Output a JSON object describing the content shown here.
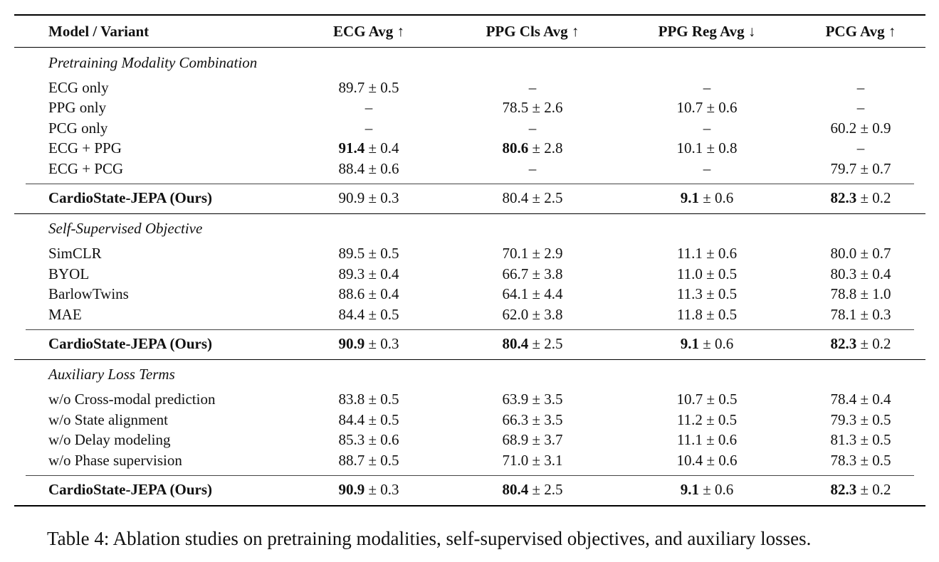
{
  "table": {
    "columns": [
      "Model / Variant",
      "ECG Avg ↑",
      "PPG Cls Avg ↑",
      "PPG Reg Avg ↓",
      "PCG Avg ↑"
    ],
    "groups": [
      {
        "title": "Pretraining Modality Combination",
        "rows": [
          {
            "name": "ECG only",
            "cells": [
              {
                "v": "89.7",
                "s": " ± 0.5",
                "b": false
              },
              {
                "v": "–",
                "s": "",
                "b": false
              },
              {
                "v": "–",
                "s": "",
                "b": false
              },
              {
                "v": "–",
                "s": "",
                "b": false
              }
            ]
          },
          {
            "name": "PPG only",
            "cells": [
              {
                "v": "–",
                "s": "",
                "b": false
              },
              {
                "v": "78.5",
                "s": " ± 2.6",
                "b": false
              },
              {
                "v": "10.7",
                "s": " ± 0.6",
                "b": false
              },
              {
                "v": "–",
                "s": "",
                "b": false
              }
            ]
          },
          {
            "name": "PCG only",
            "cells": [
              {
                "v": "–",
                "s": "",
                "b": false
              },
              {
                "v": "–",
                "s": "",
                "b": false
              },
              {
                "v": "–",
                "s": "",
                "b": false
              },
              {
                "v": "60.2",
                "s": " ± 0.9",
                "b": false
              }
            ]
          },
          {
            "name": "ECG + PPG",
            "cells": [
              {
                "v": "91.4",
                "s": " ± 0.4",
                "b": true
              },
              {
                "v": "80.6",
                "s": " ± 2.8",
                "b": true
              },
              {
                "v": "10.1",
                "s": " ± 0.8",
                "b": false
              },
              {
                "v": "–",
                "s": "",
                "b": false
              }
            ]
          },
          {
            "name": "ECG + PCG",
            "cells": [
              {
                "v": "88.4",
                "s": " ± 0.6",
                "b": false
              },
              {
                "v": "–",
                "s": "",
                "b": false
              },
              {
                "v": "–",
                "s": "",
                "b": false
              },
              {
                "v": "79.7",
                "s": " ± 0.7",
                "b": false
              }
            ]
          }
        ],
        "ours": {
          "name": "CardioState-JEPA (Ours)",
          "cells": [
            {
              "v": "90.9",
              "s": " ± 0.3",
              "b": false
            },
            {
              "v": "80.4",
              "s": " ± 2.5",
              "b": false
            },
            {
              "v": "9.1",
              "s": " ± 0.6",
              "b": true
            },
            {
              "v": "82.3",
              "s": " ± 0.2",
              "b": true
            }
          ]
        }
      },
      {
        "title": "Self-Supervised Objective",
        "rows": [
          {
            "name": "SimCLR",
            "cells": [
              {
                "v": "89.5",
                "s": " ± 0.5",
                "b": false
              },
              {
                "v": "70.1",
                "s": " ± 2.9",
                "b": false
              },
              {
                "v": "11.1",
                "s": " ± 0.6",
                "b": false
              },
              {
                "v": "80.0",
                "s": " ± 0.7",
                "b": false
              }
            ]
          },
          {
            "name": "BYOL",
            "cells": [
              {
                "v": "89.3",
                "s": " ± 0.4",
                "b": false
              },
              {
                "v": "66.7",
                "s": " ± 3.8",
                "b": false
              },
              {
                "v": "11.0",
                "s": " ± 0.5",
                "b": false
              },
              {
                "v": "80.3",
                "s": " ± 0.4",
                "b": false
              }
            ]
          },
          {
            "name": "BarlowTwins",
            "cells": [
              {
                "v": "88.6",
                "s": " ± 0.4",
                "b": false
              },
              {
                "v": "64.1",
                "s": " ± 4.4",
                "b": false
              },
              {
                "v": "11.3",
                "s": " ± 0.5",
                "b": false
              },
              {
                "v": "78.8",
                "s": " ± 1.0",
                "b": false
              }
            ]
          },
          {
            "name": "MAE",
            "cells": [
              {
                "v": "84.4",
                "s": " ± 0.5",
                "b": false
              },
              {
                "v": "62.0",
                "s": " ± 3.8",
                "b": false
              },
              {
                "v": "11.8",
                "s": " ± 0.5",
                "b": false
              },
              {
                "v": "78.1",
                "s": " ± 0.3",
                "b": false
              }
            ]
          }
        ],
        "ours": {
          "name": "CardioState-JEPA (Ours)",
          "cells": [
            {
              "v": "90.9",
              "s": " ± 0.3",
              "b": true
            },
            {
              "v": "80.4",
              "s": " ± 2.5",
              "b": true
            },
            {
              "v": "9.1",
              "s": " ± 0.6",
              "b": true
            },
            {
              "v": "82.3",
              "s": " ± 0.2",
              "b": true
            }
          ]
        }
      },
      {
        "title": "Auxiliary Loss Terms",
        "rows": [
          {
            "name": "w/o Cross-modal prediction",
            "cells": [
              {
                "v": "83.8",
                "s": " ± 0.5",
                "b": false
              },
              {
                "v": "63.9",
                "s": " ± 3.5",
                "b": false
              },
              {
                "v": "10.7",
                "s": " ± 0.5",
                "b": false
              },
              {
                "v": "78.4",
                "s": " ± 0.4",
                "b": false
              }
            ]
          },
          {
            "name": "w/o State alignment",
            "cells": [
              {
                "v": "84.4",
                "s": " ± 0.5",
                "b": false
              },
              {
                "v": "66.3",
                "s": " ± 3.5",
                "b": false
              },
              {
                "v": "11.2",
                "s": " ± 0.5",
                "b": false
              },
              {
                "v": "79.3",
                "s": " ± 0.5",
                "b": false
              }
            ]
          },
          {
            "name": "w/o Delay modeling",
            "cells": [
              {
                "v": "85.3",
                "s": " ± 0.6",
                "b": false
              },
              {
                "v": "68.9",
                "s": " ± 3.7",
                "b": false
              },
              {
                "v": "11.1",
                "s": " ± 0.6",
                "b": false
              },
              {
                "v": "81.3",
                "s": " ± 0.5",
                "b": false
              }
            ]
          },
          {
            "name": "w/o Phase supervision",
            "cells": [
              {
                "v": "88.7",
                "s": " ± 0.5",
                "b": false
              },
              {
                "v": "71.0",
                "s": " ± 3.1",
                "b": false
              },
              {
                "v": "10.4",
                "s": " ± 0.6",
                "b": false
              },
              {
                "v": "78.3",
                "s": " ± 0.5",
                "b": false
              }
            ]
          }
        ],
        "ours": {
          "name": "CardioState-JEPA (Ours)",
          "cells": [
            {
              "v": "90.9",
              "s": " ± 0.3",
              "b": true
            },
            {
              "v": "80.4",
              "s": " ± 2.5",
              "b": true
            },
            {
              "v": "9.1",
              "s": " ± 0.6",
              "b": true
            },
            {
              "v": "82.3",
              "s": " ± 0.2",
              "b": true
            }
          ]
        }
      }
    ]
  },
  "caption": "Table 4: Ablation studies on pretraining modalities, self-supervised objectives, and auxiliary losses."
}
